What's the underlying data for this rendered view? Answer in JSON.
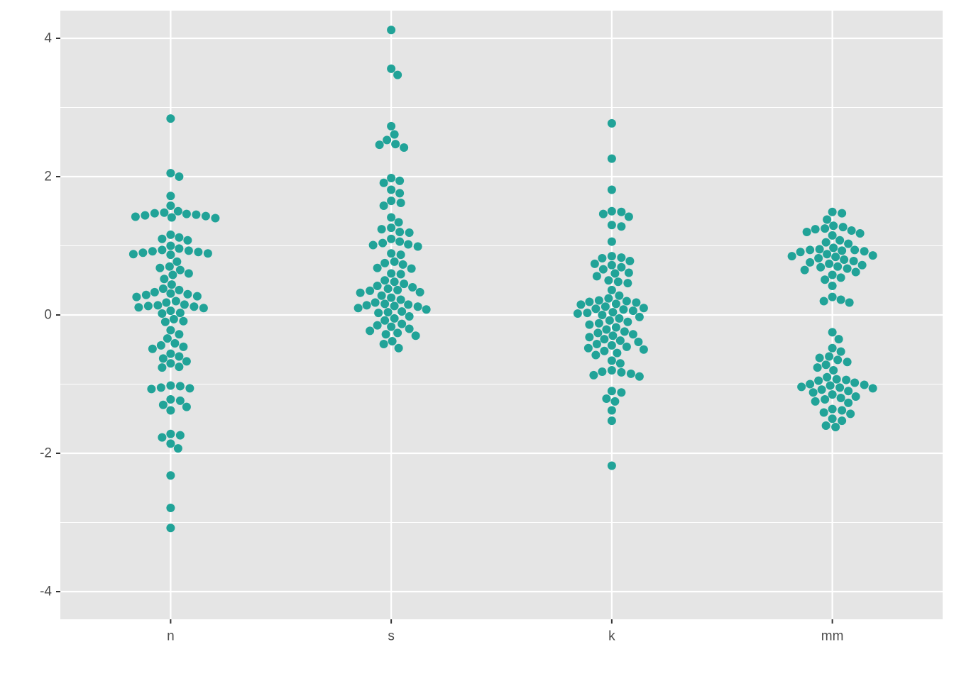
{
  "chart_data": {
    "type": "scatter",
    "subtype": "beeswarm",
    "title": "",
    "xlabel": "",
    "ylabel": "",
    "categories": [
      "n",
      "s",
      "k",
      "mm"
    ],
    "ylim": [
      -4.4,
      4.4
    ],
    "yticks": [
      -4,
      -2,
      0,
      2,
      4
    ],
    "ytick_labels": [
      "-4",
      "-2",
      "0",
      "2",
      "4"
    ],
    "grid": true,
    "legend": "none",
    "point_color": "#21A398",
    "panel_color": "#E5E5E5",
    "series": [
      {
        "category": "n",
        "values": [
          2.84,
          2.05,
          2.0,
          1.72,
          1.58,
          1.5,
          1.48,
          1.47,
          1.46,
          1.45,
          1.44,
          1.43,
          1.42,
          1.41,
          1.4,
          1.16,
          1.12,
          1.1,
          1.08,
          1.0,
          0.96,
          0.94,
          0.93,
          0.92,
          0.91,
          0.9,
          0.89,
          0.88,
          0.87,
          0.77,
          0.7,
          0.68,
          0.65,
          0.6,
          0.58,
          0.52,
          0.44,
          0.38,
          0.36,
          0.33,
          0.31,
          0.3,
          0.29,
          0.27,
          0.26,
          0.2,
          0.18,
          0.15,
          0.14,
          0.13,
          0.12,
          0.11,
          0.1,
          0.06,
          0.03,
          0.02,
          -0.06,
          -0.09,
          -0.1,
          -0.22,
          -0.28,
          -0.34,
          -0.41,
          -0.44,
          -0.46,
          -0.49,
          -0.56,
          -0.6,
          -0.63,
          -0.67,
          -0.7,
          -0.75,
          -0.76,
          -1.02,
          -1.03,
          -1.05,
          -1.07,
          -1.06,
          -1.22,
          -1.24,
          -1.3,
          -1.33,
          -1.38,
          -1.72,
          -1.74,
          -1.77,
          -1.86,
          -1.93,
          -2.32,
          -2.79,
          -3.08
        ]
      },
      {
        "category": "s",
        "values": [
          4.12,
          3.56,
          3.47,
          2.73,
          2.61,
          2.53,
          2.47,
          2.46,
          2.42,
          1.98,
          1.94,
          1.91,
          1.81,
          1.76,
          1.65,
          1.62,
          1.58,
          1.41,
          1.34,
          1.26,
          1.24,
          1.2,
          1.19,
          1.1,
          1.06,
          1.04,
          1.02,
          1.01,
          0.99,
          0.89,
          0.87,
          0.77,
          0.75,
          0.73,
          0.68,
          0.67,
          0.6,
          0.59,
          0.5,
          0.48,
          0.45,
          0.42,
          0.4,
          0.38,
          0.36,
          0.35,
          0.33,
          0.32,
          0.28,
          0.25,
          0.22,
          0.18,
          0.16,
          0.15,
          0.14,
          0.13,
          0.12,
          0.1,
          0.08,
          0.05,
          0.04,
          0.03,
          -0.02,
          -0.05,
          -0.08,
          -0.13,
          -0.15,
          -0.17,
          -0.2,
          -0.23,
          -0.26,
          -0.28,
          -0.3,
          -0.38,
          -0.42,
          -0.48
        ]
      },
      {
        "category": "k",
        "values": [
          2.77,
          2.26,
          1.81,
          1.5,
          1.49,
          1.46,
          1.42,
          1.3,
          1.28,
          1.06,
          0.85,
          0.83,
          0.82,
          0.78,
          0.74,
          0.72,
          0.69,
          0.66,
          0.61,
          0.6,
          0.56,
          0.5,
          0.48,
          0.46,
          0.36,
          0.28,
          0.24,
          0.21,
          0.2,
          0.19,
          0.18,
          0.16,
          0.15,
          0.12,
          0.1,
          0.09,
          0.08,
          0.06,
          0.04,
          0.03,
          0.02,
          0.0,
          -0.03,
          -0.05,
          -0.08,
          -0.1,
          -0.12,
          -0.14,
          -0.18,
          -0.21,
          -0.24,
          -0.26,
          -0.28,
          -0.3,
          -0.32,
          -0.35,
          -0.37,
          -0.39,
          -0.42,
          -0.44,
          -0.46,
          -0.48,
          -0.5,
          -0.52,
          -0.55,
          -0.58,
          -0.66,
          -0.7,
          -0.8,
          -0.82,
          -0.83,
          -0.85,
          -0.87,
          -0.89,
          -1.1,
          -1.12,
          -1.21,
          -1.25,
          -1.38,
          -1.53,
          -2.18
        ]
      },
      {
        "category": "mm",
        "values": [
          1.49,
          1.47,
          1.38,
          1.29,
          1.27,
          1.25,
          1.24,
          1.22,
          1.2,
          1.18,
          1.15,
          1.08,
          1.05,
          1.03,
          0.97,
          0.95,
          0.94,
          0.94,
          0.93,
          0.92,
          0.91,
          0.88,
          0.86,
          0.85,
          0.84,
          0.82,
          0.8,
          0.78,
          0.76,
          0.74,
          0.72,
          0.7,
          0.69,
          0.67,
          0.65,
          0.62,
          0.58,
          0.54,
          0.51,
          0.42,
          0.26,
          0.22,
          0.2,
          0.18,
          -0.25,
          -0.35,
          -0.48,
          -0.53,
          -0.6,
          -0.62,
          -0.65,
          -0.68,
          -0.72,
          -0.76,
          -0.8,
          -0.9,
          -0.93,
          -0.94,
          -0.95,
          -0.98,
          -1.0,
          -1.01,
          -1.02,
          -1.04,
          -1.05,
          -1.06,
          -1.08,
          -1.1,
          -1.12,
          -1.15,
          -1.18,
          -1.2,
          -1.22,
          -1.25,
          -1.27,
          -1.36,
          -1.38,
          -1.41,
          -1.43,
          -1.5,
          -1.53,
          -1.6,
          -1.62
        ]
      }
    ]
  }
}
